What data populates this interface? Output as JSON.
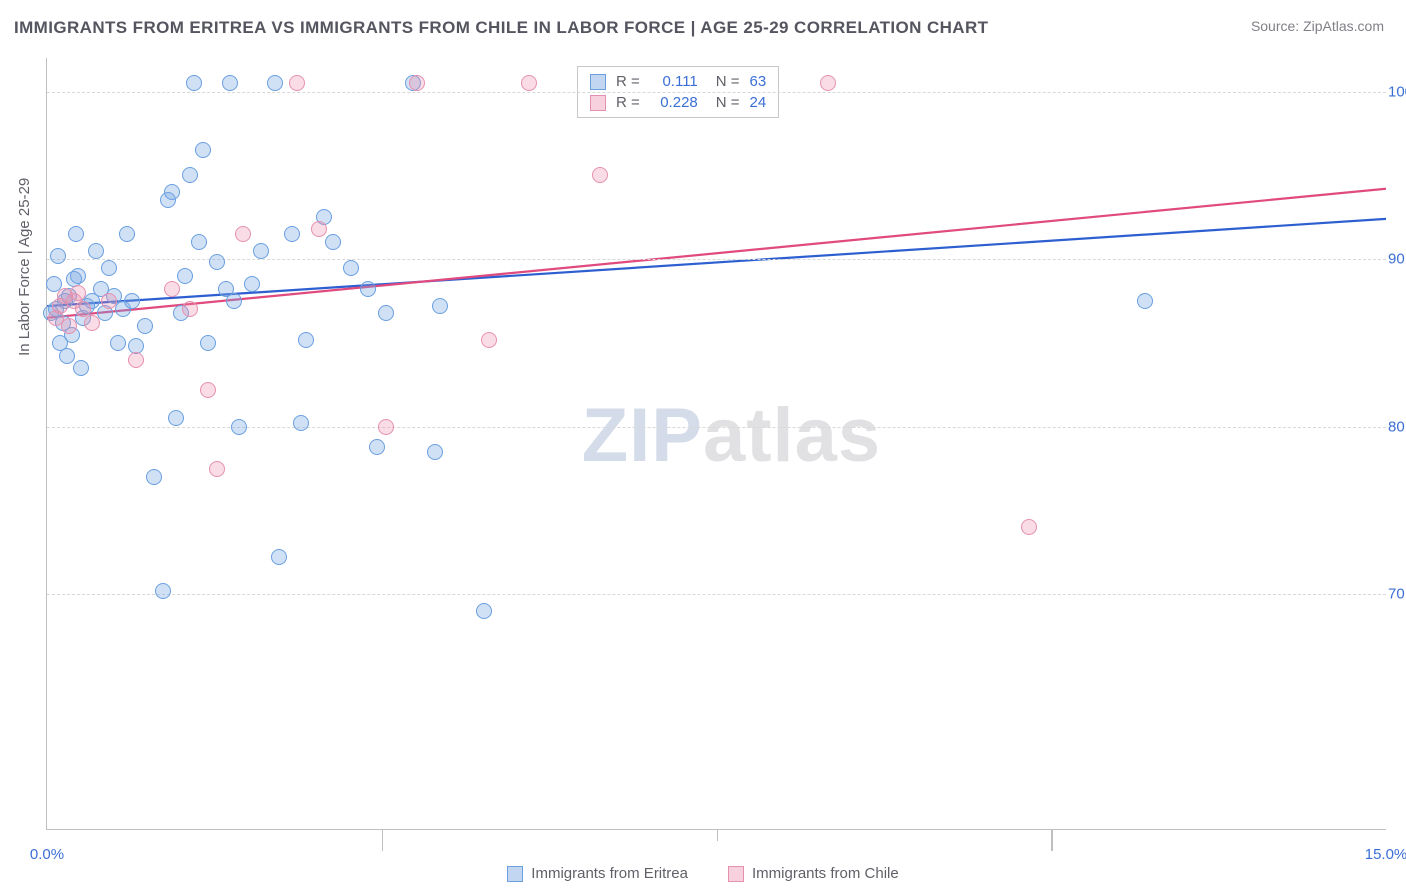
{
  "title": "IMMIGRANTS FROM ERITREA VS IMMIGRANTS FROM CHILE IN LABOR FORCE | AGE 25-29 CORRELATION CHART",
  "source": "Source: ZipAtlas.com",
  "yaxis_title": "In Labor Force | Age 25-29",
  "watermark_a": "ZIP",
  "watermark_b": "atlas",
  "chart": {
    "type": "scatter-correlation",
    "x_domain": [
      0,
      15
    ],
    "y_domain": [
      56,
      102
    ],
    "x_ticks_labeled": [
      {
        "v": 0,
        "label": "0.0%"
      },
      {
        "v": 15,
        "label": "15.0%"
      }
    ],
    "x_ticks_major": [
      3.75,
      11.25
    ],
    "x_ticks_minor": [
      7.5
    ],
    "y_ticks": [
      {
        "v": 70,
        "label": "70.0%"
      },
      {
        "v": 80,
        "label": "80.0%"
      },
      {
        "v": 90,
        "label": "90.0%"
      },
      {
        "v": 100,
        "label": "100.0%"
      }
    ],
    "y_grid": [
      70,
      80,
      90,
      100
    ],
    "background_color": "#ffffff",
    "grid_color": "#d8d8d8",
    "axis_color": "#bfbfbf",
    "marker_radius": 8,
    "marker_stroke_width": 1.4,
    "line_width": 2.2,
    "series": [
      {
        "name": "Immigrants from Eritrea",
        "fill": "rgba(120,165,225,0.35)",
        "stroke": "#6a9fe0",
        "line_color": "#2d5fd1",
        "R": "0.111",
        "N": "63",
        "trend": {
          "x1": 0,
          "y1": 87.2,
          "x2": 15,
          "y2": 92.4
        },
        "points": [
          [
            0.05,
            86.8
          ],
          [
            0.08,
            88.5
          ],
          [
            0.1,
            87.0
          ],
          [
            0.12,
            90.2
          ],
          [
            0.15,
            85.0
          ],
          [
            0.18,
            86.2
          ],
          [
            0.2,
            87.5
          ],
          [
            0.22,
            84.2
          ],
          [
            0.25,
            87.8
          ],
          [
            0.28,
            85.5
          ],
          [
            0.3,
            88.8
          ],
          [
            0.32,
            91.5
          ],
          [
            0.35,
            89.0
          ],
          [
            0.38,
            83.5
          ],
          [
            0.4,
            86.5
          ],
          [
            0.45,
            87.2
          ],
          [
            0.5,
            87.5
          ],
          [
            0.55,
            90.5
          ],
          [
            0.6,
            88.2
          ],
          [
            0.65,
            86.8
          ],
          [
            0.7,
            89.5
          ],
          [
            0.75,
            87.8
          ],
          [
            0.8,
            85.0
          ],
          [
            0.85,
            87.0
          ],
          [
            0.9,
            91.5
          ],
          [
            0.95,
            87.5
          ],
          [
            1.0,
            84.8
          ],
          [
            1.1,
            86.0
          ],
          [
            1.2,
            77.0
          ],
          [
            1.3,
            70.2
          ],
          [
            1.35,
            93.5
          ],
          [
            1.4,
            94.0
          ],
          [
            1.45,
            80.5
          ],
          [
            1.5,
            86.8
          ],
          [
            1.55,
            89.0
          ],
          [
            1.6,
            95.0
          ],
          [
            1.65,
            100.5
          ],
          [
            1.7,
            91.0
          ],
          [
            1.75,
            96.5
          ],
          [
            1.8,
            85.0
          ],
          [
            1.9,
            89.8
          ],
          [
            2.0,
            88.2
          ],
          [
            2.05,
            100.5
          ],
          [
            2.1,
            87.5
          ],
          [
            2.15,
            80.0
          ],
          [
            2.3,
            88.5
          ],
          [
            2.4,
            90.5
          ],
          [
            2.55,
            100.5
          ],
          [
            2.6,
            72.2
          ],
          [
            2.75,
            91.5
          ],
          [
            2.85,
            80.2
          ],
          [
            2.9,
            85.2
          ],
          [
            3.1,
            92.5
          ],
          [
            3.2,
            91.0
          ],
          [
            3.4,
            89.5
          ],
          [
            3.6,
            88.2
          ],
          [
            3.7,
            78.8
          ],
          [
            3.8,
            86.8
          ],
          [
            4.1,
            100.5
          ],
          [
            4.35,
            78.5
          ],
          [
            4.4,
            87.2
          ],
          [
            4.9,
            69.0
          ],
          [
            12.3,
            87.5
          ]
        ]
      },
      {
        "name": "Immigrants from Chile",
        "fill": "rgba(235,140,170,0.3)",
        "stroke": "#e590af",
        "line_color": "#e04a7e",
        "R": "0.228",
        "N": "24",
        "trend": {
          "x1": 0,
          "y1": 86.5,
          "x2": 15,
          "y2": 94.2
        },
        "points": [
          [
            0.1,
            86.5
          ],
          [
            0.15,
            87.2
          ],
          [
            0.2,
            87.8
          ],
          [
            0.25,
            86.0
          ],
          [
            0.3,
            87.5
          ],
          [
            0.35,
            88.0
          ],
          [
            0.4,
            87.0
          ],
          [
            0.5,
            86.2
          ],
          [
            0.7,
            87.5
          ],
          [
            1.0,
            84.0
          ],
          [
            1.4,
            88.2
          ],
          [
            1.6,
            87.0
          ],
          [
            1.8,
            82.2
          ],
          [
            1.9,
            77.5
          ],
          [
            2.2,
            91.5
          ],
          [
            2.8,
            100.5
          ],
          [
            3.05,
            91.8
          ],
          [
            3.8,
            80.0
          ],
          [
            4.15,
            100.5
          ],
          [
            4.95,
            85.2
          ],
          [
            5.4,
            100.5
          ],
          [
            6.2,
            95.0
          ],
          [
            8.75,
            100.5
          ],
          [
            11.0,
            74.0
          ]
        ]
      }
    ]
  },
  "legend_top": {
    "rows": [
      {
        "swatch": "eritrea",
        "r_label": "R =",
        "r_val": "0.111",
        "n_label": "N =",
        "n_val": "63"
      },
      {
        "swatch": "chile",
        "r_label": "R =",
        "r_val": "0.228",
        "n_label": "N =",
        "n_val": "24"
      }
    ]
  },
  "legend_bottom": [
    {
      "swatch": "eritrea",
      "label": "Immigrants from Eritrea"
    },
    {
      "swatch": "chile",
      "label": "Immigrants from Chile"
    }
  ],
  "swatches": {
    "eritrea": {
      "fill": "rgba(120,165,225,0.45)",
      "stroke": "#6a9fe0"
    },
    "chile": {
      "fill": "rgba(235,140,170,0.4)",
      "stroke": "#e590af"
    }
  },
  "value_color": "#3b6fd6",
  "label_color": "#606068"
}
